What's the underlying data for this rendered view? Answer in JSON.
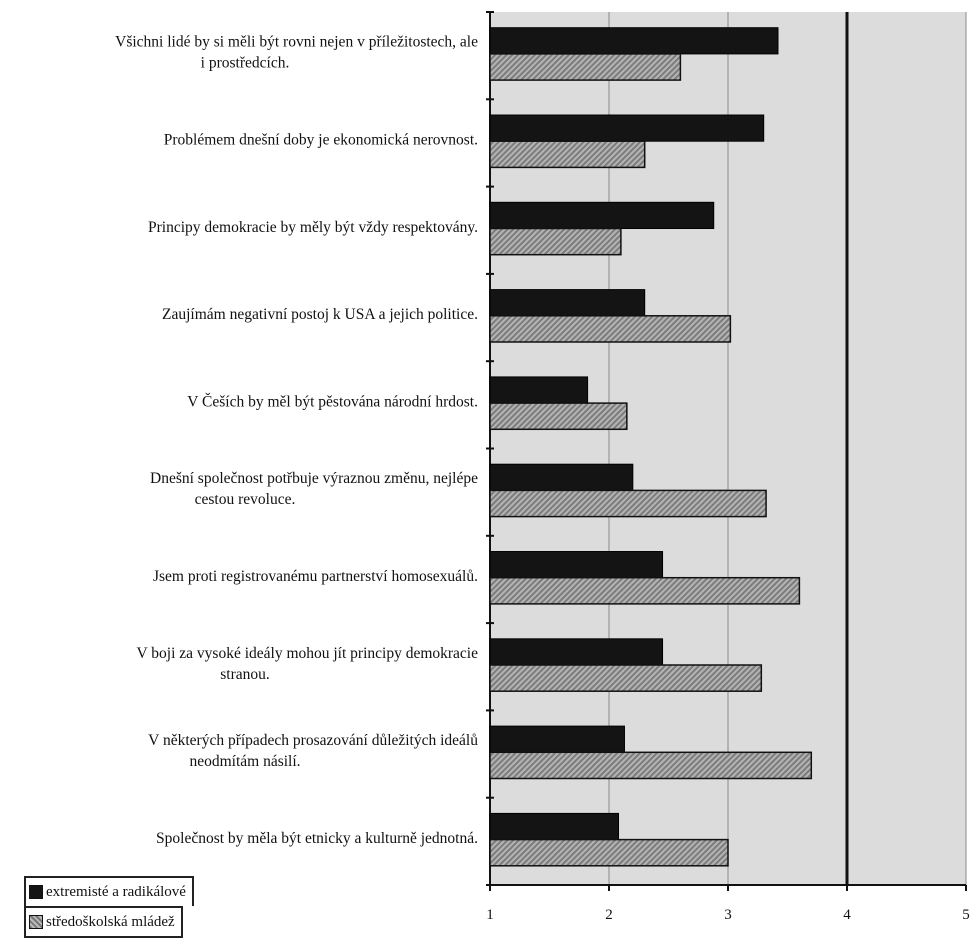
{
  "chart_data": {
    "type": "bar",
    "orientation": "horizontal",
    "categories": [
      "Všichni lidé by si měli být rovni nejen v příležitostech, ale i prostředcích.",
      "Problémem dnešní doby je ekonomická nerovnost.",
      "Principy demokracie by měly být vždy respektovány.",
      "Zaujímám negativní postoj k USA a jejich politice.",
      "V Češích by měl být pěstována národní hrdost.",
      "Dnešní společnost potřbuje výraznou změnu, nejlépe cestou revoluce.",
      "Jsem proti registrovanému partnerství homosexuálů.",
      "V boji za vysoké ideály mohou jít principy demokracie stranou.",
      "V některých případech prosazování důležitých ideálů neodmítám násilí.",
      "Společnost by měla být etnicky a kulturně jednotná."
    ],
    "category_lines": [
      [
        "Všichni lidé by si měli být rovni nejen v příležitostech, ale",
        "i prostředcích."
      ],
      [
        "Problémem dnešní doby je ekonomická nerovnost."
      ],
      [
        "Principy demokracie by měly být vždy respektovány."
      ],
      [
        "Zaujímám negativní postoj k USA a jejich politice."
      ],
      [
        "V Češích by měl být pěstována národní hrdost."
      ],
      [
        "Dnešní společnost potřbuje výraznou změnu, nejlépe",
        "cestou revoluce."
      ],
      [
        "Jsem proti registrovanému partnerství homosexuálů."
      ],
      [
        "V boji za vysoké ideály mohou jít principy demokracie",
        "stranou."
      ],
      [
        "V některých případech prosazování důležitých ideálů",
        "neodmítám násilí."
      ],
      [
        "Společnost by měla být etnicky a kulturně jednotná."
      ]
    ],
    "series": [
      {
        "name": "extremisté a radikálové",
        "color": "#141414",
        "values": [
          3.42,
          3.3,
          2.88,
          2.3,
          1.82,
          2.2,
          2.45,
          2.45,
          2.13,
          2.08
        ]
      },
      {
        "name": "středoškolská mládež",
        "color": "#9a9a9a",
        "values": [
          2.6,
          2.3,
          2.1,
          3.02,
          2.15,
          3.32,
          3.6,
          3.28,
          3.7,
          3.0
        ]
      }
    ],
    "xlim": [
      1,
      5
    ],
    "xticks": [
      "1",
      "2",
      "3",
      "4",
      "5"
    ],
    "reference_line": 4,
    "grid": true,
    "legend_position": "bottom-left",
    "title": "",
    "xlabel": "",
    "ylabel": ""
  }
}
